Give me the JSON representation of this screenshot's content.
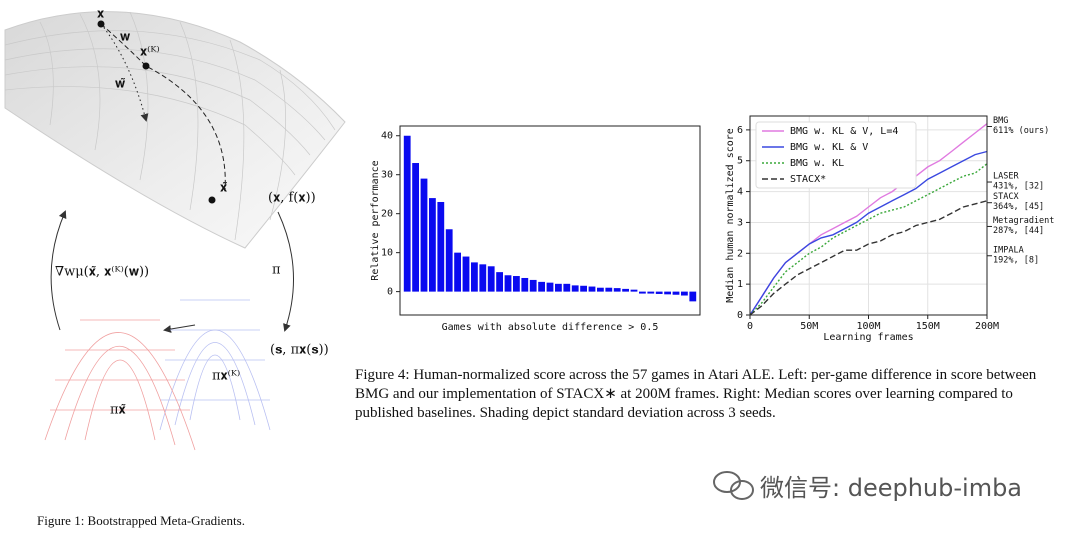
{
  "figure1": {
    "labels": {
      "x": "𝐱",
      "w": "𝐰",
      "xK": "𝐱⁽ᴷ⁾",
      "w_tilde": "𝐰̃",
      "x_tilde": "𝐱̃",
      "x_fx": "(𝐱, f(𝐱))",
      "pi": "π",
      "s_pi": "(𝐬, π𝐱(𝐬))",
      "grad": "∇wμ(𝐱̃, 𝐱⁽ᴷ⁾(𝐰))",
      "pi_xK": "π𝐱⁽ᴷ⁾",
      "pi_x_tilde": "π𝐱̃"
    },
    "caption": "Figure 1: Bootstrapped Meta-Gradients."
  },
  "chart_data": [
    {
      "type": "bar",
      "ylabel": "Relative performance",
      "xlabel": "Games with absolute difference > 0.5",
      "categories": [
        null,
        null,
        null,
        null,
        null,
        null,
        null,
        null,
        null,
        null,
        null,
        null,
        null,
        null,
        null,
        null,
        null,
        null,
        null,
        null,
        null,
        null,
        null,
        null,
        null,
        null,
        null,
        null,
        null,
        null,
        null,
        null,
        null,
        null,
        null
      ],
      "values": [
        40,
        33,
        29,
        24,
        23,
        16,
        10,
        9,
        7.5,
        7,
        6.5,
        5,
        4.2,
        4,
        3.5,
        3,
        2.5,
        2.3,
        2,
        2,
        1.6,
        1.5,
        1.3,
        1,
        1,
        0.9,
        0.7,
        0.5,
        -0.5,
        -0.5,
        -0.6,
        -0.7,
        -0.8,
        -1,
        -2.5
      ],
      "color": "#0a0af0",
      "ylim": [
        -6,
        42.5
      ],
      "yticks": [
        0,
        10,
        20,
        30,
        40
      ]
    },
    {
      "type": "line",
      "ylabel": "Median human normalized score",
      "xlabel": "Learning frames",
      "x": [
        0,
        10000000,
        20000000,
        30000000,
        40000000,
        50000000,
        60000000,
        70000000,
        80000000,
        90000000,
        100000000,
        110000000,
        120000000,
        130000000,
        140000000,
        150000000,
        160000000,
        170000000,
        180000000,
        190000000,
        200000000
      ],
      "series": [
        {
          "name": "BMG w. KL & V, L=4",
          "color": "#e07ae0",
          "style": "solid",
          "values": [
            0,
            0.6,
            1.2,
            1.7,
            2.0,
            2.3,
            2.6,
            2.8,
            3.0,
            3.2,
            3.5,
            3.8,
            4.0,
            4.3,
            4.5,
            4.8,
            5.0,
            5.3,
            5.6,
            5.9,
            6.2
          ]
        },
        {
          "name": "BMG w. KL & V",
          "color": "#3a48e0",
          "style": "solid",
          "values": [
            0,
            0.6,
            1.2,
            1.7,
            2.0,
            2.3,
            2.5,
            2.6,
            2.8,
            3.0,
            3.3,
            3.5,
            3.7,
            3.9,
            4.1,
            4.4,
            4.6,
            4.8,
            5.0,
            5.2,
            5.3
          ]
        },
        {
          "name": "BMG w. KL",
          "color": "#3aa83a",
          "style": "dotted",
          "values": [
            0,
            0.4,
            0.9,
            1.4,
            1.7,
            2.0,
            2.2,
            2.5,
            2.7,
            2.9,
            3.1,
            3.3,
            3.4,
            3.5,
            3.7,
            3.9,
            4.1,
            4.3,
            4.5,
            4.6,
            4.9
          ]
        },
        {
          "name": "STACX*",
          "color": "#333333",
          "style": "dashed",
          "values": [
            0,
            0.3,
            0.7,
            1.0,
            1.3,
            1.5,
            1.7,
            1.9,
            2.1,
            2.1,
            2.3,
            2.4,
            2.6,
            2.7,
            2.9,
            3.0,
            3.1,
            3.3,
            3.5,
            3.6,
            3.7
          ]
        }
      ],
      "xlim": [
        0,
        200000000
      ],
      "xticks": [
        0,
        {
          "value": 50000000,
          "label": "50M"
        },
        {
          "value": 100000000,
          "label": "100M"
        },
        {
          "value": 150000000,
          "label": "150M"
        },
        {
          "value": 200000000,
          "label": "200M"
        }
      ],
      "ylim": [
        0,
        6.45
      ],
      "yticks": [
        0,
        1,
        2,
        3,
        4,
        5,
        6
      ],
      "grid": true,
      "legend": "upper left",
      "annotations": [
        {
          "lines": [
            "BMG",
            "611% (ours)"
          ],
          "value": 6.11
        },
        {
          "lines": [
            "LASER",
            "431%, [32]"
          ],
          "value": 4.31
        },
        {
          "lines": [
            "STACX",
            "364%, [45]"
          ],
          "value": 3.64
        },
        {
          "lines": [
            "Metagradient",
            "287%, [44]"
          ],
          "value": 2.87
        },
        {
          "lines": [
            "IMPALA",
            "192%, [8]"
          ],
          "value": 1.92
        }
      ]
    }
  ],
  "figure4_caption": "Figure 4: Human-normalized score across the 57 games in Atari ALE. Left: per-game difference in score between BMG and our implementation of STACX∗ at 200M frames. Right: Median scores over learning compared to published baselines. Shading depict standard deviation across 3 seeds.",
  "watermark": "微信号: deephub-imba"
}
